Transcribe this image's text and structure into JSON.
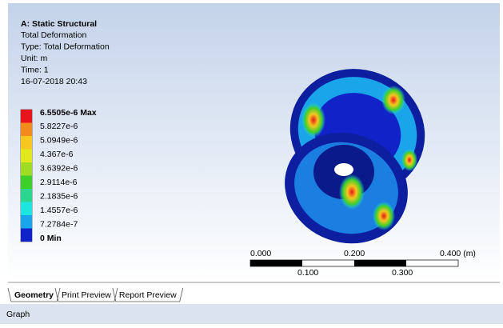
{
  "header": {
    "title": "A: Static Structural",
    "lines": [
      "Total Deformation",
      "Type: Total Deformation",
      "Unit: m",
      "Time: 1",
      "16-07-2018 20:43"
    ]
  },
  "legend": {
    "items": [
      {
        "label": "6.5505e-6 Max",
        "color": "#e8161b"
      },
      {
        "label": "5.8227e-6",
        "color": "#f28a1c"
      },
      {
        "label": "5.0949e-6",
        "color": "#f5c71f"
      },
      {
        "label": "4.367e-6",
        "color": "#e3e81e"
      },
      {
        "label": "3.6392e-6",
        "color": "#9fdc24"
      },
      {
        "label": "2.9114e-6",
        "color": "#3fcf2a"
      },
      {
        "label": "2.1835e-6",
        "color": "#2bd68e"
      },
      {
        "label": "1.4557e-6",
        "color": "#1ee5e0"
      },
      {
        "label": "7.2784e-7",
        "color": "#1aa4ea"
      },
      {
        "label": "0 Min",
        "color": "#1022c8"
      }
    ]
  },
  "scale": {
    "top": [
      "0.000",
      "0.200",
      "0.400 (m)"
    ],
    "bottom": [
      "0.100",
      "0.300"
    ]
  },
  "tabs": [
    "Geometry",
    "Print Preview",
    "Report Preview"
  ],
  "status": "Graph"
}
